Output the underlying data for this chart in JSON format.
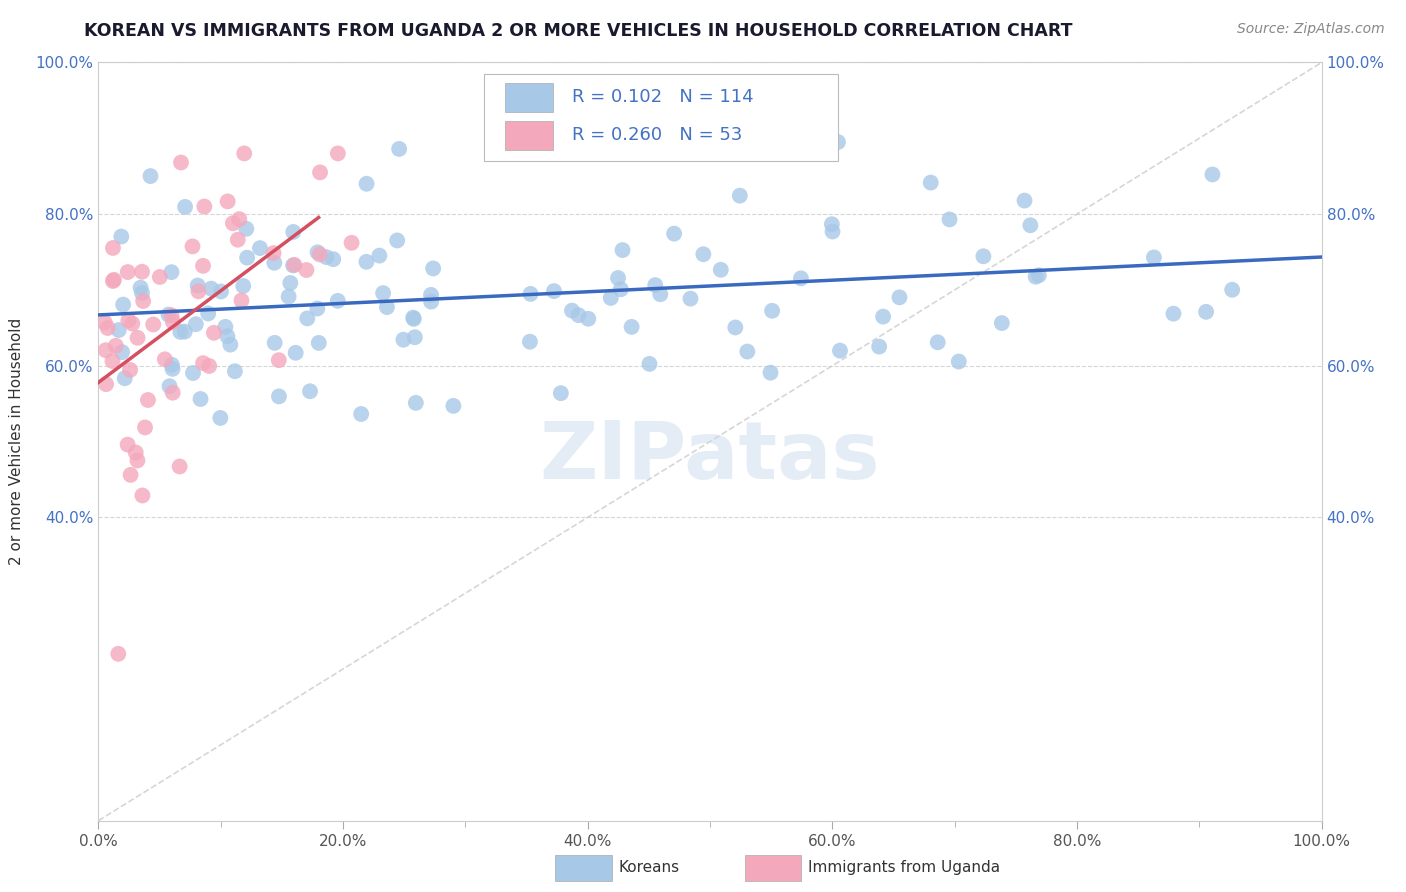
{
  "title": "KOREAN VS IMMIGRANTS FROM UGANDA 2 OR MORE VEHICLES IN HOUSEHOLD CORRELATION CHART",
  "source": "Source: ZipAtlas.com",
  "ylabel": "2 or more Vehicles in Household",
  "legend_labels": [
    "Koreans",
    "Immigrants from Uganda"
  ],
  "r_korean": 0.102,
  "n_korean": 114,
  "r_uganda": 0.26,
  "n_uganda": 53,
  "color_korean": "#a8c8e8",
  "color_uganda": "#f4a8bc",
  "line_color_korean": "#3a6abf",
  "line_color_uganda": "#d45060",
  "diag_color": "#cccccc",
  "background_color": "#ffffff",
  "watermark": "ZIPatas",
  "title_color": "#1a1a2e",
  "source_color": "#888888",
  "axis_color": "#4472c4",
  "label_color": "#333333",
  "grid_color": "#cccccc"
}
